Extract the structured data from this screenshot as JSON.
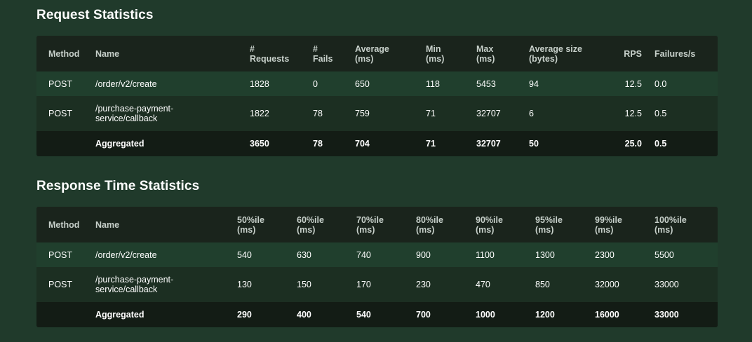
{
  "request_statistics": {
    "title": "Request Statistics",
    "headers": {
      "method": "Method",
      "name": "Name",
      "requests_1": "#",
      "requests_2": "Requests",
      "fails_1": "#",
      "fails_2": "Fails",
      "average_1": "Average",
      "average_2": "(ms)",
      "min_1": "Min",
      "min_2": "(ms)",
      "max_1": "Max",
      "max_2": "(ms)",
      "avgsize_1": "Average size",
      "avgsize_2": "(bytes)",
      "rps": "RPS",
      "failures_s": "Failures/s"
    },
    "rows": [
      {
        "method": "POST",
        "name_1": "/order/v2/create",
        "name_2": "",
        "requests": "1828",
        "fails": "0",
        "average": "650",
        "min": "118",
        "max": "5453",
        "avg_size": "94",
        "rps": "12.5",
        "failures_s": "0.0"
      },
      {
        "method": "POST",
        "name_1": "/purchase-payment-",
        "name_2": "service/callback",
        "requests": "1822",
        "fails": "78",
        "average": "759",
        "min": "71",
        "max": "32707",
        "avg_size": "6",
        "rps": "12.5",
        "failures_s": "0.5"
      }
    ],
    "aggregated": {
      "method": "",
      "name": "Aggregated",
      "requests": "3650",
      "fails": "78",
      "average": "704",
      "min": "71",
      "max": "32707",
      "avg_size": "50",
      "rps": "25.0",
      "failures_s": "0.5"
    }
  },
  "response_time_statistics": {
    "title": "Response Time Statistics",
    "headers": {
      "method": "Method",
      "name": "Name",
      "p50_1": "50%ile",
      "p50_2": "(ms)",
      "p60_1": "60%ile",
      "p60_2": "(ms)",
      "p70_1": "70%ile",
      "p70_2": "(ms)",
      "p80_1": "80%ile",
      "p80_2": "(ms)",
      "p90_1": "90%ile",
      "p90_2": "(ms)",
      "p95_1": "95%ile",
      "p95_2": "(ms)",
      "p99_1": "99%ile",
      "p99_2": "(ms)",
      "p100_1": "100%ile",
      "p100_2": "(ms)"
    },
    "rows": [
      {
        "method": "POST",
        "name_1": "/order/v2/create",
        "name_2": "",
        "p50": "540",
        "p60": "630",
        "p70": "740",
        "p80": "900",
        "p90": "1100",
        "p95": "1300",
        "p99": "2300",
        "p100": "5500"
      },
      {
        "method": "POST",
        "name_1": "/purchase-payment-",
        "name_2": "service/callback",
        "p50": "130",
        "p60": "150",
        "p70": "170",
        "p80": "230",
        "p90": "470",
        "p95": "850",
        "p99": "32000",
        "p100": "33000"
      }
    ],
    "aggregated": {
      "method": "",
      "name": "Aggregated",
      "p50": "290",
      "p60": "400",
      "p70": "540",
      "p80": "700",
      "p90": "1000",
      "p95": "1200",
      "p99": "16000",
      "p100": "33000"
    }
  },
  "colors": {
    "page_background": "#203a2b",
    "table_header_background": "#1a241c",
    "row_light": "#203f2d",
    "row_dark": "#1c2f22",
    "aggregated_background": "#131c15",
    "header_text": "#c7d0ca",
    "text": "#ffffff"
  }
}
